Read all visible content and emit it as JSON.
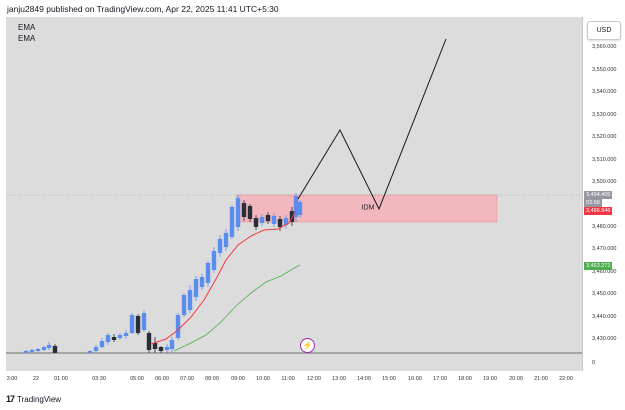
{
  "header": {
    "publisher_line": "janju2849 published on TradingView.com, Apr 22, 2025 11:41 UTC+5:30"
  },
  "legend": [
    {
      "label": "EMA"
    },
    {
      "label": "EMA"
    }
  ],
  "annotation": {
    "zone_label": "IDM"
  },
  "currency": "USD",
  "y_axis": {
    "ticks": [
      "3,560.000",
      "3,550.000",
      "3,540.000",
      "3,530.000",
      "3,520.000",
      "3,510.000",
      "3,500.000",
      "3,480.000",
      "3,470.000",
      "3,460.000",
      "3,450.000",
      "3,440.000",
      "3,430.000",
      "0"
    ]
  },
  "price_tags": {
    "last_price": "3,494.405",
    "countdown": "03:58",
    "ema_fast": "3,486.946",
    "ema_slow": "3,463.271"
  },
  "x_axis": {
    "ticks": [
      "3:00",
      "22",
      "01:00",
      "03:30",
      "05:00",
      "06:00",
      "07:00",
      "08:00",
      "09:00",
      "10:00",
      "11:00",
      "12:00",
      "13:00",
      "14:00",
      "15:00",
      "16:00",
      "17:00",
      "18:00",
      "19:00",
      "20:00",
      "21:00",
      "22:00"
    ]
  },
  "footer": {
    "brand": "TradingView",
    "logo_text": "17"
  },
  "colors": {
    "bull_candle": "#5b8def",
    "bear_candle": "#2a2e39",
    "ema_fast": "#f23645",
    "ema_slow": "#4caf50",
    "zone_fill": "#f2b8bd",
    "last_price_tag": "#9598a1",
    "ema_fast_tag": "#f23645",
    "ema_slow_tag": "#4caf50"
  }
}
